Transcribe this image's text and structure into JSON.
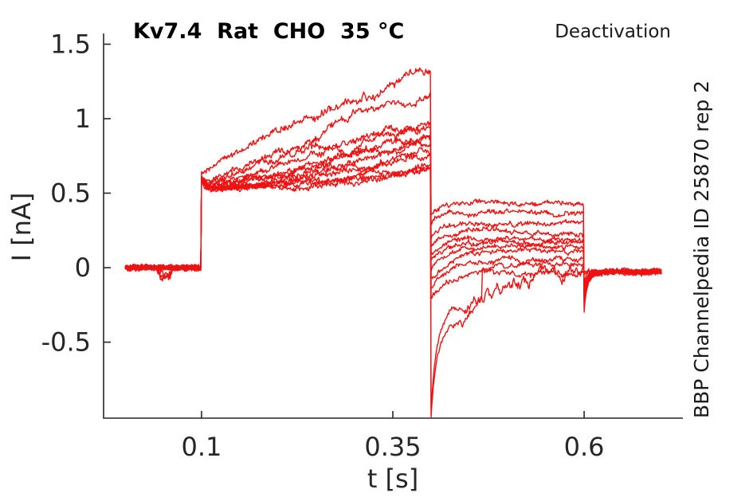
{
  "figure": {
    "title": "Kv7.4  Rat  CHO  35 °C",
    "protocol_label": "Deactivation",
    "source_label": "BBP Channelpedia ID 25870 rep 2",
    "xlabel": "t [s]",
    "ylabel": "I [nA]"
  },
  "chart_data": {
    "type": "line",
    "title": "Kv7.4  Rat  CHO  35 °C",
    "annotation_right": "Deactivation",
    "side_label": "BBP Channelpedia ID 25870 rep 2",
    "xlabel": "t [s]",
    "ylabel": "I [nA]",
    "xlim": [
      -0.028,
      0.729
    ],
    "ylim": [
      -1.01,
      1.572
    ],
    "xticks": [
      0.1,
      0.35,
      0.6
    ],
    "xtick_labels": [
      "0.1",
      "0.35",
      "0.6"
    ],
    "yticks": [
      -0.5,
      0,
      0.5,
      1,
      1.5
    ],
    "ytick_labels": [
      "-0.5",
      "0",
      "0.5",
      "1",
      "1.5"
    ],
    "grid": false,
    "legend": null,
    "line_color": "#ee1212",
    "axis_color": "#262626",
    "n_sweeps": 12,
    "protocol": {
      "t_begin": 0,
      "step_on": 0.1,
      "step_off": 0.4,
      "tail_off": 0.6,
      "t_end": 0.701,
      "baseline_pre": 0.0,
      "baseline_post": -0.03,
      "description": "voltage-step deactivation protocol: holding 0-0.1 s (I=0 nA), activating step 0.1-0.4 s (I rises 0.55 to 0.63-1.31 nA), deactivating steps 0.4-0.6 s (tail currents 0.43 to -0.93 nA), return to holding 0.6-0.7 s (I=-0.03 nA)"
    },
    "sweeps": [
      {
        "seed": 11,
        "act_start": 0.56,
        "act_end": 1.31,
        "act_shape": 0.62,
        "wander": 0.055,
        "tail_ss": 0.43,
        "tail_peak": 0.36,
        "tail_tau": 0.01
      },
      {
        "seed": 22,
        "act_start": 0.55,
        "act_end": 1.12,
        "act_shape": 0.85,
        "wander": 0.05,
        "tail_ss": 0.37,
        "tail_peak": 0.29,
        "tail_tau": 0.01
      },
      {
        "seed": 33,
        "act_start": 0.545,
        "act_end": 1.03,
        "act_shape": 0.95,
        "wander": 0.045,
        "tail_ss": 0.29,
        "tail_peak": 0.2,
        "tail_tau": 0.012
      },
      {
        "seed": 44,
        "act_start": 0.54,
        "act_end": 0.96,
        "act_shape": 1.0,
        "wander": 0.042,
        "tail_ss": 0.24,
        "tail_peak": 0.15,
        "tail_tau": 0.014,
        "pre_blip": 0.05
      },
      {
        "seed": 55,
        "act_start": 0.535,
        "act_end": 0.9,
        "act_shape": 1.1,
        "wander": 0.04,
        "tail_ss": 0.19,
        "tail_peak": 0.08,
        "tail_tau": 0.016
      },
      {
        "seed": 66,
        "act_start": 0.53,
        "act_end": 0.86,
        "act_shape": 1.15,
        "wander": 0.038,
        "tail_ss": 0.17,
        "tail_peak": 0.04,
        "tail_tau": 0.018,
        "pre_blip": 0.06
      },
      {
        "seed": 77,
        "act_start": 0.53,
        "act_end": 0.82,
        "act_shape": 1.2,
        "wander": 0.036,
        "tail_ss": 0.14,
        "tail_peak": -0.02,
        "tail_tau": 0.02
      },
      {
        "seed": 88,
        "act_start": 0.525,
        "act_end": 0.79,
        "act_shape": 1.25,
        "wander": 0.034,
        "tail_ss": 0.11,
        "tail_peak": -0.07,
        "tail_tau": 0.024
      },
      {
        "seed": 99,
        "act_start": 0.52,
        "act_end": 0.74,
        "act_shape": 1.3,
        "wander": 0.032,
        "tail_ss": 0.06,
        "tail_peak": -0.13,
        "tail_tau": 0.028,
        "pre_blip": 0.04
      },
      {
        "seed": 110,
        "act_start": 0.52,
        "act_end": 0.68,
        "act_shape": 1.35,
        "wander": 0.03,
        "tail_ss": 0.02,
        "tail_peak": -0.2,
        "tail_tau": 0.032
      },
      {
        "seed": 121,
        "act_start": 0.525,
        "act_end": 0.65,
        "act_shape": 1.35,
        "wander": 0.03,
        "tail_ss": -0.16,
        "tail_peak": -1.0,
        "slow": true,
        "tail_step": {
          "at": 0.066,
          "to": -0.04
        }
      },
      {
        "seed": 132,
        "act_start": 0.53,
        "act_end": 0.63,
        "act_shape": 1.4,
        "wander": 0.028,
        "tail_ss": -0.05,
        "tail_peak": -0.95,
        "slow": true
      }
    ]
  }
}
